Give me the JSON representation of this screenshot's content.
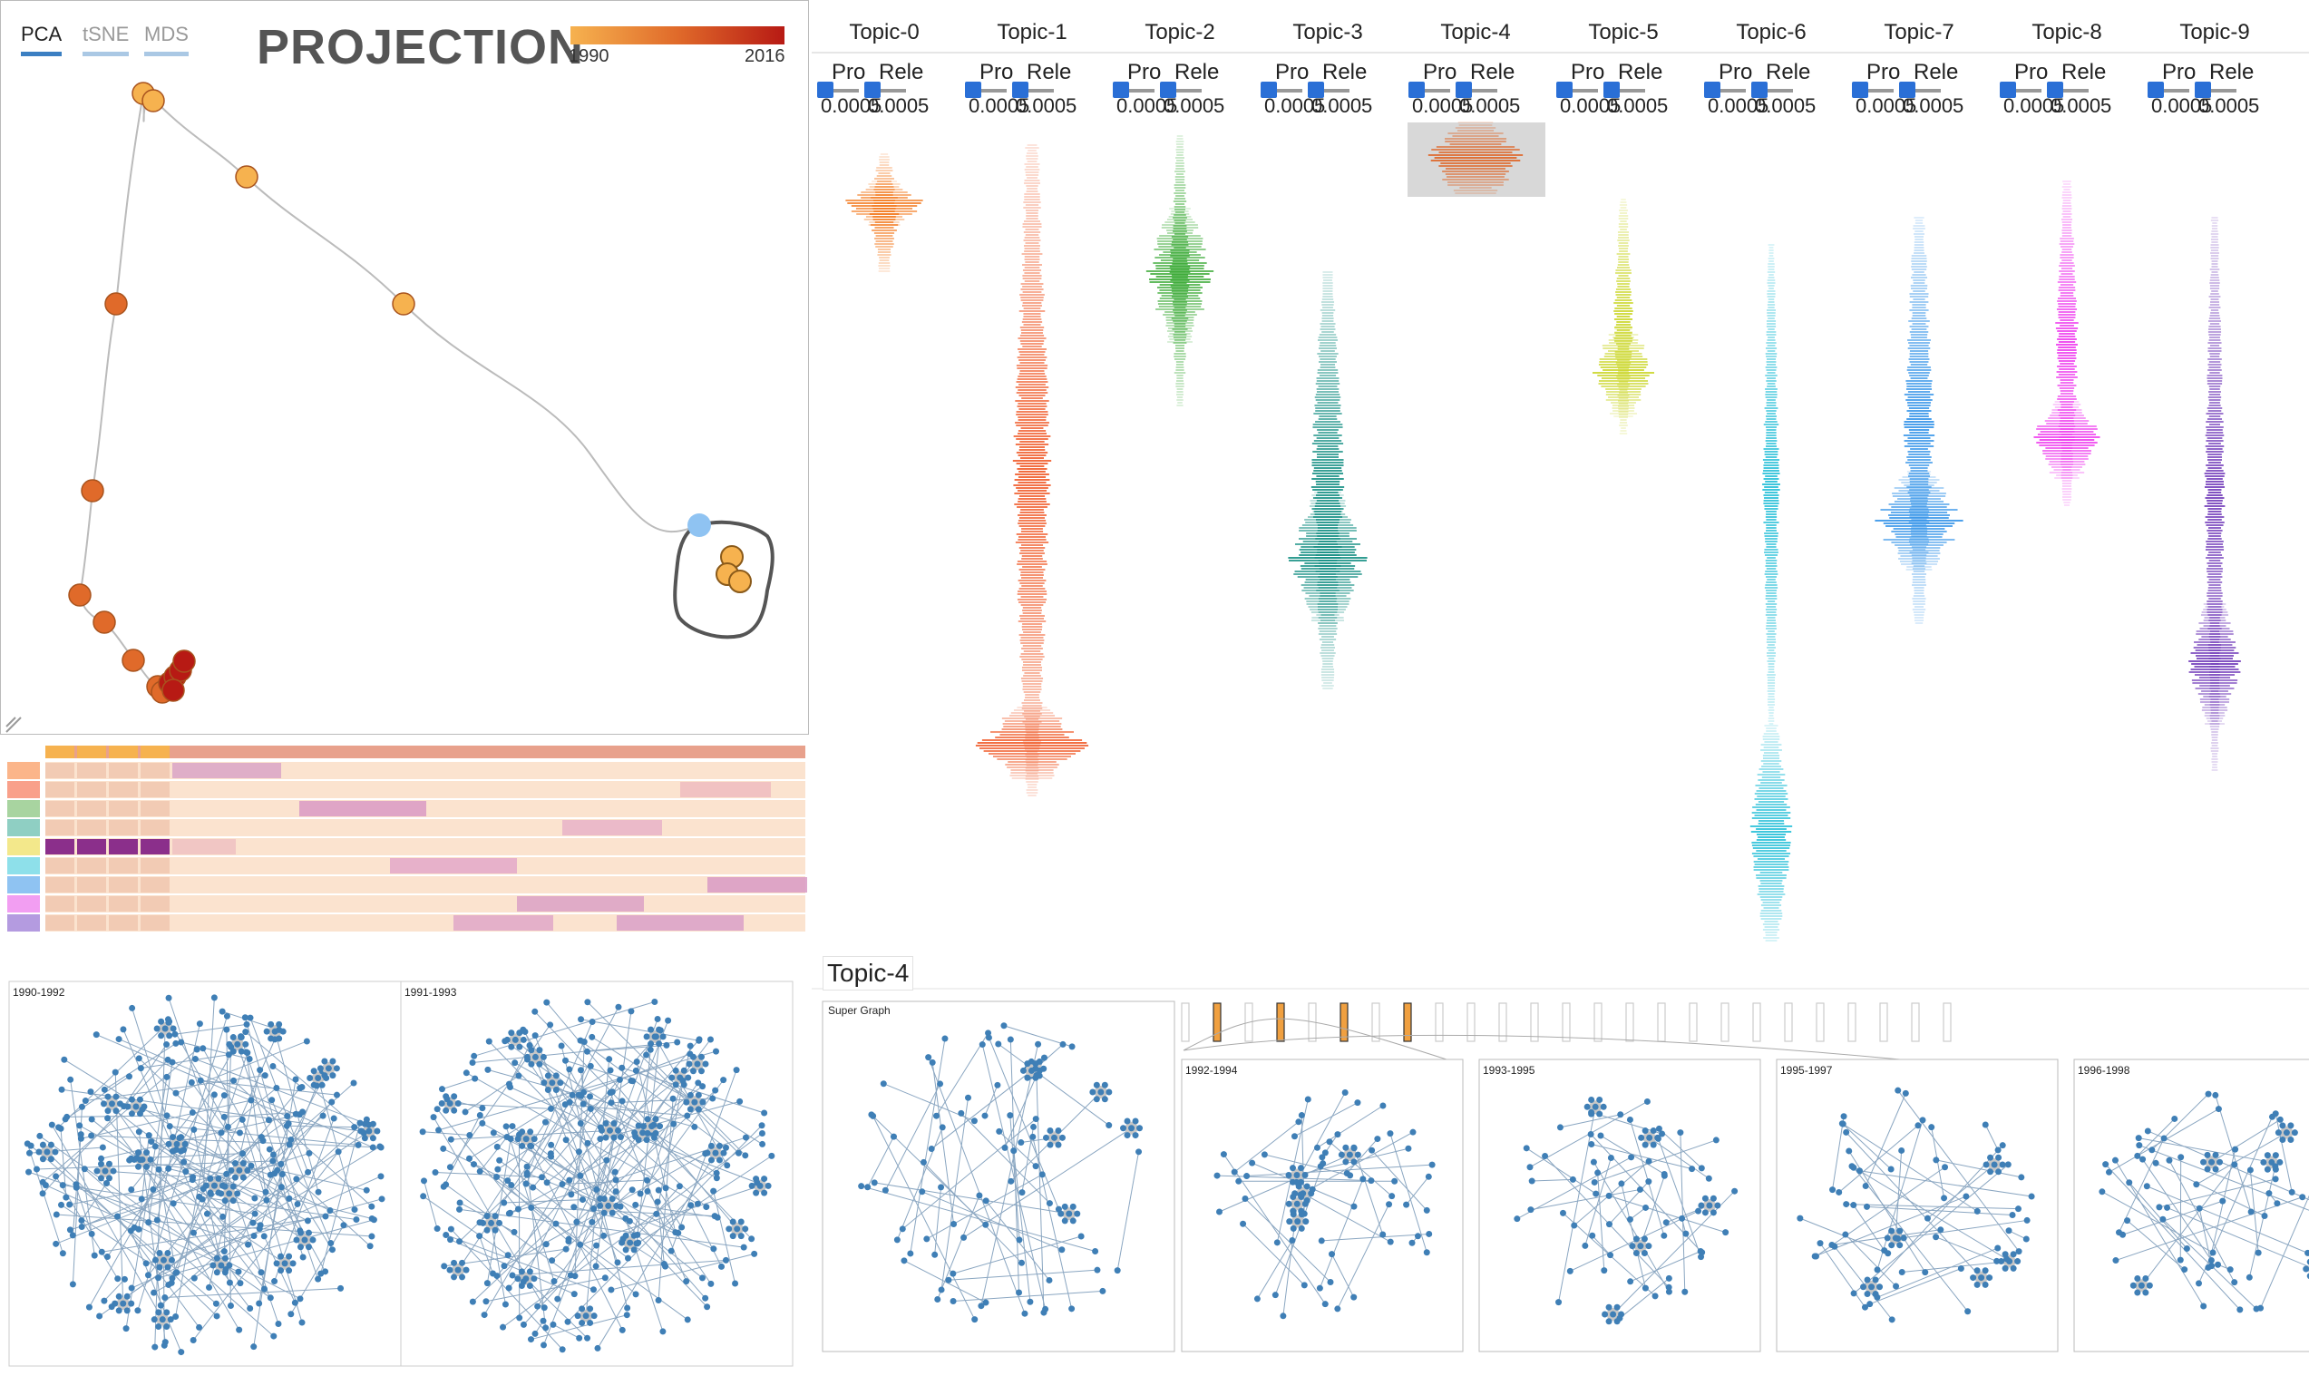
{
  "projection": {
    "tabs": [
      {
        "label": "PCA",
        "active": true
      },
      {
        "label": "tSNE",
        "active": false
      },
      {
        "label": "MDS",
        "active": false
      }
    ],
    "title": "PROJECTION",
    "year_start": "1990",
    "year_end": "2016",
    "colors": {
      "early": "#f6b24f",
      "mid": "#e06a2a",
      "late": "#b71a14",
      "selected": "#8fc3f2"
    }
  },
  "topics": [
    {
      "label": "Topic-0",
      "color": "#f47b20"
    },
    {
      "label": "Topic-1",
      "color": "#f0531f"
    },
    {
      "label": "Topic-2",
      "color": "#3aaa35"
    },
    {
      "label": "Topic-3",
      "color": "#0e8c80"
    },
    {
      "label": "Topic-4",
      "color": "#e05d1a"
    },
    {
      "label": "Topic-5",
      "color": "#c9d521"
    },
    {
      "label": "Topic-6",
      "color": "#19bcd6"
    },
    {
      "label": "Topic-7",
      "color": "#2b8fe8"
    },
    {
      "label": "Topic-8",
      "color": "#ee33ee"
    },
    {
      "label": "Topic-9",
      "color": "#6c33b7"
    }
  ],
  "topic_controls": {
    "prob_label": "Pro",
    "rel_label": "Rele",
    "prob_value": "0.0005",
    "rel_value": "0.0005"
  },
  "heatmap": {
    "row_colors": [
      "#fbb58a",
      "#f9a08a",
      "#a8d4a0",
      "#8fcfc3",
      "#f3e88b",
      "#8ee0ea",
      "#8fc3f2",
      "#f29ef2",
      "#b49be0"
    ],
    "highlight_row": 4,
    "highlight_color": "#8b2f8b",
    "base_color": "#fbe3cf",
    "cell_color": "#f2cbb4",
    "accent": "#c894c4"
  },
  "networks": {
    "left": [
      {
        "label": "1990-1992"
      },
      {
        "label": "1991-1993"
      }
    ],
    "detail": {
      "title": "Topic-4",
      "super_label": "Super Graph",
      "windows": [
        {
          "label": "1992-1994"
        },
        {
          "label": "1993-1995"
        },
        {
          "label": "1995-1997"
        },
        {
          "label": "1996-1998"
        }
      ],
      "node_color": "#3f7fb6",
      "hub_color": "#c7c7c7"
    }
  }
}
